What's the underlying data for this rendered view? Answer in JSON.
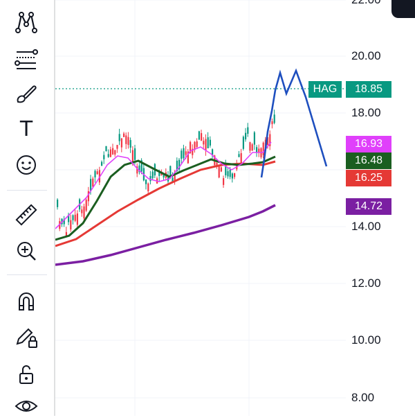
{
  "toolbar": {
    "tools": [
      {
        "icon": "pattern-icon"
      },
      {
        "icon": "fib-retracement-icon"
      },
      {
        "icon": "brush-icon"
      },
      {
        "icon": "text-icon",
        "glyph": "T"
      },
      {
        "icon": "emoji-icon"
      },
      {
        "icon": "ruler-icon"
      },
      {
        "icon": "zoom-in-icon"
      },
      {
        "icon": "magnet-icon"
      },
      {
        "icon": "pencil-lock-icon"
      },
      {
        "icon": "lock-icon"
      },
      {
        "icon": "eye-icon"
      }
    ]
  },
  "price_axis": {
    "ticks": [
      "22.00",
      "20.00",
      "18.00",
      "14.00",
      "12.00",
      "10.00",
      "8.00"
    ]
  },
  "symbol": {
    "ticker": "HAG",
    "last_price": "18.85",
    "last_color": "#089981"
  },
  "indicators": [
    {
      "value": "16.93",
      "color": "#e040fb"
    },
    {
      "value": "16.48",
      "color": "#1b5e20"
    },
    {
      "value": "16.25",
      "color": "#e53935"
    },
    {
      "value": "14.72",
      "color": "#7b1fa2"
    }
  ],
  "colors": {
    "up": "#089981",
    "down": "#f23645",
    "projection": "#1e4fbf"
  }
}
